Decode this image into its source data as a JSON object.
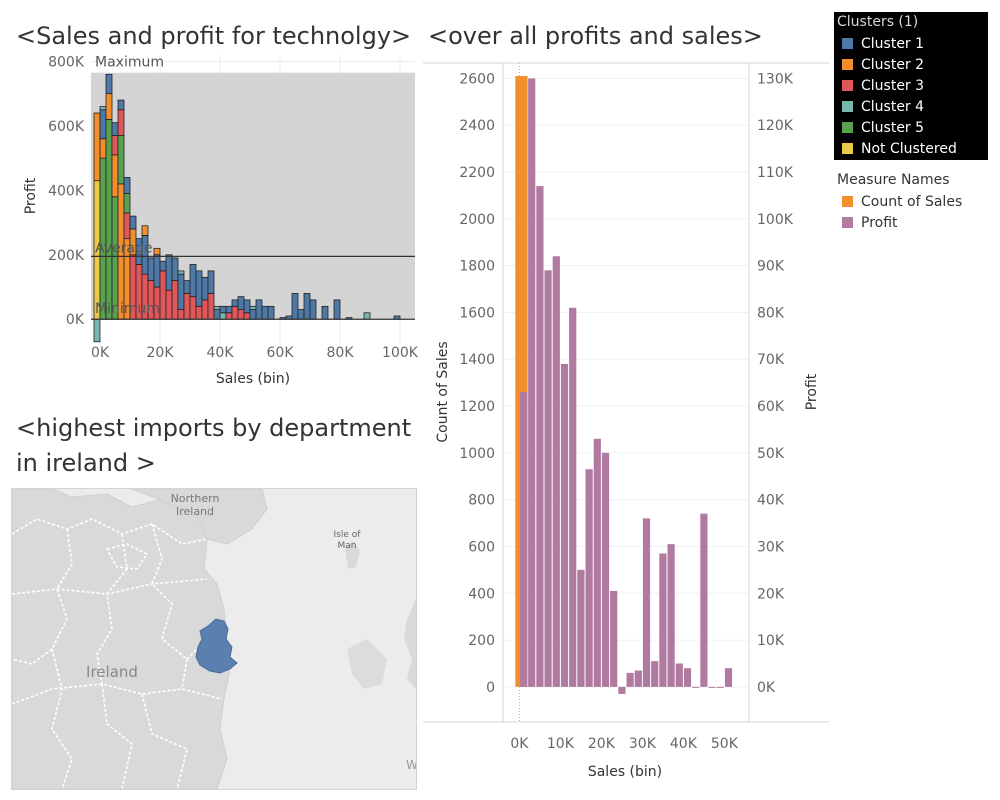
{
  "titles": {
    "tech": "<Sales and profit for technolgy>",
    "overall": "<over all profits and sales>",
    "map_line1": "<highest imports by department",
    "map_line2": "in ireland >"
  },
  "clusters_legend": {
    "title": "Clusters (1)",
    "items": [
      {
        "label": "Cluster 1",
        "color": "#4e79a7"
      },
      {
        "label": "Cluster 2",
        "color": "#f28e2b"
      },
      {
        "label": "Cluster 3",
        "color": "#e15759"
      },
      {
        "label": "Cluster 4",
        "color": "#76b7b2"
      },
      {
        "label": "Cluster 5",
        "color": "#59a14f"
      },
      {
        "label": "Not Clustered",
        "color": "#edc948"
      }
    ]
  },
  "measures_legend": {
    "title": "Measure Names",
    "items": [
      {
        "label": "Count of Sales",
        "color": "#f28e2b"
      },
      {
        "label": "Profit",
        "color": "#b07aa1"
      }
    ]
  },
  "map": {
    "labels": {
      "northern_ireland": "Northern\nIreland",
      "isle_of_man": "Isle of\nMan",
      "ireland": "Ireland",
      "edge": "W"
    },
    "highlight_color": "#5b7fae"
  },
  "chart_data": [
    {
      "type": "bar",
      "name": "tech",
      "title": "<Sales and profit for technolgy>",
      "xlabel": "Sales (bin)",
      "ylabel": "Profit",
      "xlim": [
        -3000,
        105000
      ],
      "ylim": [
        -80000,
        820000
      ],
      "x_ticks": [
        0,
        20000,
        40000,
        60000,
        80000,
        100000
      ],
      "x_tick_labels": [
        "0K",
        "20K",
        "40K",
        "60K",
        "80K",
        "100K"
      ],
      "y_ticks": [
        0,
        200000,
        400000,
        600000,
        800000
      ],
      "y_tick_labels": [
        "0K",
        "200K",
        "400K",
        "600K",
        "800K"
      ],
      "reference_lines": {
        "maximum": {
          "label": "Maximum",
          "value": 765000
        },
        "average": {
          "label": "Average",
          "value": 195000
        },
        "minimum": {
          "label": "Minimum",
          "value": 0
        }
      },
      "bin_width": 2000,
      "bars": [
        {
          "x": -1000,
          "segments": [
            [
              5,
              430000
            ],
            [
              1,
              210000
            ]
          ]
        },
        {
          "x": 1000,
          "segments": [
            [
              4,
              500000
            ],
            [
              1,
              60000
            ],
            [
              0,
              90000
            ],
            [
              3,
              10000
            ]
          ]
        },
        {
          "x": 3000,
          "segments": [
            [
              4,
              620000
            ],
            [
              1,
              80000
            ],
            [
              0,
              60000
            ]
          ]
        },
        {
          "x": 5000,
          "segments": [
            [
              4,
              380000
            ],
            [
              1,
              130000
            ],
            [
              2,
              60000
            ],
            [
              0,
              40000
            ]
          ]
        },
        {
          "x": 7000,
          "segments": [
            [
              1,
              420000
            ],
            [
              4,
              150000
            ],
            [
              2,
              80000
            ],
            [
              0,
              30000
            ]
          ]
        },
        {
          "x": 9000,
          "segments": [
            [
              1,
              250000
            ],
            [
              2,
              80000
            ],
            [
              4,
              60000
            ],
            [
              0,
              50000
            ]
          ]
        },
        {
          "x": 11000,
          "segments": [
            [
              2,
              200000
            ],
            [
              1,
              80000
            ],
            [
              0,
              40000
            ]
          ]
        },
        {
          "x": 13000,
          "segments": [
            [
              2,
              170000
            ],
            [
              0,
              80000
            ]
          ]
        },
        {
          "x": 15000,
          "segments": [
            [
              2,
              140000
            ],
            [
              0,
              120000
            ],
            [
              1,
              30000
            ]
          ]
        },
        {
          "x": 17000,
          "segments": [
            [
              2,
              120000
            ],
            [
              0,
              70000
            ]
          ]
        },
        {
          "x": 19000,
          "segments": [
            [
              2,
              100000
            ],
            [
              0,
              100000
            ],
            [
              1,
              20000
            ]
          ]
        },
        {
          "x": 21000,
          "segments": [
            [
              2,
              150000
            ],
            [
              0,
              30000
            ]
          ]
        },
        {
          "x": 23000,
          "segments": [
            [
              2,
              90000
            ],
            [
              0,
              110000
            ]
          ]
        },
        {
          "x": 25000,
          "segments": [
            [
              2,
              120000
            ],
            [
              0,
              70000
            ]
          ]
        },
        {
          "x": 27000,
          "segments": [
            [
              2,
              30000
            ],
            [
              0,
              110000
            ],
            [
              3,
              10000
            ]
          ]
        },
        {
          "x": 29000,
          "segments": [
            [
              2,
              80000
            ],
            [
              0,
              40000
            ]
          ]
        },
        {
          "x": 31000,
          "segments": [
            [
              2,
              70000
            ],
            [
              0,
              100000
            ]
          ]
        },
        {
          "x": 33000,
          "segments": [
            [
              2,
              40000
            ],
            [
              0,
              110000
            ]
          ]
        },
        {
          "x": 35000,
          "segments": [
            [
              2,
              60000
            ],
            [
              0,
              70000
            ]
          ]
        },
        {
          "x": 37000,
          "segments": [
            [
              2,
              80000
            ],
            [
              0,
              70000
            ]
          ]
        },
        {
          "x": 39000,
          "segments": [
            [
              0,
              30000
            ],
            [
              3,
              10000
            ]
          ]
        },
        {
          "x": 41000,
          "segments": [
            [
              3,
              20000
            ],
            [
              0,
              20000
            ]
          ]
        },
        {
          "x": 43000,
          "segments": [
            [
              2,
              20000
            ],
            [
              0,
              20000
            ]
          ]
        },
        {
          "x": 45000,
          "segments": [
            [
              2,
              40000
            ],
            [
              0,
              20000
            ]
          ]
        },
        {
          "x": 47000,
          "segments": [
            [
              2,
              30000
            ],
            [
              0,
              40000
            ]
          ]
        },
        {
          "x": 49000,
          "segments": [
            [
              2,
              20000
            ],
            [
              0,
              40000
            ]
          ]
        },
        {
          "x": 51000,
          "segments": [
            [
              0,
              30000
            ],
            [
              3,
              10000
            ]
          ]
        },
        {
          "x": 53000,
          "segments": [
            [
              0,
              60000
            ]
          ]
        },
        {
          "x": 55000,
          "segments": [
            [
              0,
              40000
            ]
          ]
        },
        {
          "x": 57000,
          "segments": [
            [
              0,
              40000
            ]
          ]
        },
        {
          "x": 61000,
          "segments": [
            [
              0,
              5000
            ]
          ]
        },
        {
          "x": 63000,
          "segments": [
            [
              0,
              10000
            ]
          ]
        },
        {
          "x": 65000,
          "segments": [
            [
              0,
              80000
            ]
          ]
        },
        {
          "x": 67000,
          "segments": [
            [
              0,
              30000
            ]
          ]
        },
        {
          "x": 69000,
          "segments": [
            [
              0,
              80000
            ]
          ]
        },
        {
          "x": 71000,
          "segments": [
            [
              0,
              60000
            ]
          ]
        },
        {
          "x": 75000,
          "segments": [
            [
              0,
              40000
            ]
          ]
        },
        {
          "x": 79000,
          "segments": [
            [
              0,
              60000
            ]
          ]
        },
        {
          "x": 83000,
          "segments": [
            [
              0,
              5000
            ]
          ]
        },
        {
          "x": 89000,
          "segments": [
            [
              3,
              20000
            ]
          ]
        },
        {
          "x": 99000,
          "segments": [
            [
              0,
              10000
            ]
          ]
        }
      ],
      "negative_bars": [
        {
          "x": -1000,
          "cluster": 3,
          "value": -70000
        }
      ]
    },
    {
      "type": "bar",
      "name": "overall",
      "title": "<over all profits and sales>",
      "xlabel": "Sales (bin)",
      "ylabel_left": "Count of Sales",
      "ylabel_right": "Profit",
      "xlim": [
        -4000,
        56000
      ],
      "y_left_lim": [
        -150,
        2700
      ],
      "y_right_lim": [
        -7500,
        135000
      ],
      "x_ticks": [
        0,
        10000,
        20000,
        30000,
        40000,
        50000
      ],
      "x_tick_labels": [
        "0K",
        "10K",
        "20K",
        "30K",
        "40K",
        "50K"
      ],
      "y_left_ticks": [
        0,
        200,
        400,
        600,
        800,
        1000,
        1200,
        1400,
        1600,
        1800,
        2000,
        2200,
        2400,
        2600
      ],
      "y_right_ticks": [
        0,
        10000,
        20000,
        30000,
        40000,
        50000,
        60000,
        70000,
        80000,
        90000,
        100000,
        110000,
        120000,
        130000
      ],
      "y_right_tick_labels": [
        "0K",
        "10K",
        "20K",
        "30K",
        "40K",
        "50K",
        "60K",
        "70K",
        "80K",
        "90K",
        "100K",
        "110K",
        "120K",
        "130K"
      ],
      "count_of_sales": {
        "x_start": -1000,
        "x_end": 2000,
        "value": 2610
      },
      "profit_bin_width": 2000,
      "profit": [
        {
          "x": 1000,
          "value": 63000
        },
        {
          "x": 3000,
          "value": 130000
        },
        {
          "x": 5000,
          "value": 107000
        },
        {
          "x": 7000,
          "value": 89000
        },
        {
          "x": 9000,
          "value": 92000
        },
        {
          "x": 11000,
          "value": 69000
        },
        {
          "x": 13000,
          "value": 81000
        },
        {
          "x": 15000,
          "value": 25000
        },
        {
          "x": 17000,
          "value": 46500
        },
        {
          "x": 19000,
          "value": 53000
        },
        {
          "x": 21000,
          "value": 50000
        },
        {
          "x": 23000,
          "value": 20500
        },
        {
          "x": 25000,
          "value": -1500
        },
        {
          "x": 27000,
          "value": 3000
        },
        {
          "x": 29000,
          "value": 3500
        },
        {
          "x": 31000,
          "value": 36000
        },
        {
          "x": 33000,
          "value": 5500
        },
        {
          "x": 35000,
          "value": 28500
        },
        {
          "x": 37000,
          "value": 30500
        },
        {
          "x": 39000,
          "value": 5000
        },
        {
          "x": 41000,
          "value": 4000
        },
        {
          "x": 43000,
          "value": 0
        },
        {
          "x": 45000,
          "value": 37000
        },
        {
          "x": 47000,
          "value": 0
        },
        {
          "x": 49000,
          "value": 0
        },
        {
          "x": 51000,
          "value": 4000
        }
      ]
    }
  ]
}
